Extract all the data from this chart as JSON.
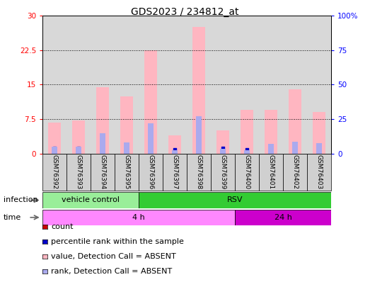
{
  "title": "GDS2023 / 234812_at",
  "samples": [
    "GSM76392",
    "GSM76393",
    "GSM76394",
    "GSM76395",
    "GSM76396",
    "GSM76397",
    "GSM76398",
    "GSM76399",
    "GSM76400",
    "GSM76401",
    "GSM76402",
    "GSM76403"
  ],
  "pink_values": [
    6.8,
    7.2,
    14.5,
    12.5,
    22.5,
    4.0,
    27.5,
    5.0,
    9.5,
    9.5,
    14.0,
    9.0
  ],
  "blue_rank_values": [
    5.0,
    5.0,
    15.0,
    8.0,
    22.0,
    2.5,
    27.0,
    3.5,
    2.5,
    7.0,
    8.5,
    7.5
  ],
  "count_values": [
    0.3,
    0.3,
    0.4,
    0.4,
    0.4,
    0.2,
    0.4,
    0.2,
    0.2,
    0.4,
    0.4,
    0.4
  ],
  "percentile_values": [
    1.2,
    1.2,
    1.8,
    1.2,
    1.2,
    0.8,
    2.5,
    1.2,
    0.8,
    1.2,
    1.2,
    1.2
  ],
  "ylim_left": [
    0,
    30
  ],
  "ylim_right": [
    0,
    100
  ],
  "yticks_left": [
    0,
    7.5,
    15,
    22.5,
    30
  ],
  "yticks_right": [
    0,
    25,
    50,
    75,
    100
  ],
  "ytick_labels_left": [
    "0",
    "7.5",
    "15",
    "22.5",
    "30"
  ],
  "ytick_labels_right": [
    "0",
    "25",
    "50",
    "75",
    "100%"
  ],
  "infection_groups": [
    {
      "label": "vehicle control",
      "start": 0,
      "end": 4,
      "color": "#99EE99"
    },
    {
      "label": "RSV",
      "start": 4,
      "end": 12,
      "color": "#33CC33"
    }
  ],
  "time_groups": [
    {
      "label": "4 h",
      "start": 0,
      "end": 8,
      "color": "#FF88FF"
    },
    {
      "label": "24 h",
      "start": 8,
      "end": 12,
      "color": "#CC00CC"
    }
  ],
  "pink_bar_color": "#FFB6C1",
  "blue_bar_color": "#AAAAEE",
  "count_color": "#CC0000",
  "percentile_color": "#0000CC",
  "chart_bg_color": "#D8D8D8",
  "chart_border_color": "#000000",
  "infection_label": "infection",
  "time_label": "time",
  "legend_items": [
    {
      "label": "count",
      "color": "#CC0000"
    },
    {
      "label": "percentile rank within the sample",
      "color": "#0000CC"
    },
    {
      "label": "value, Detection Call = ABSENT",
      "color": "#FFB6C1"
    },
    {
      "label": "rank, Detection Call = ABSENT",
      "color": "#AAAAEE"
    }
  ]
}
